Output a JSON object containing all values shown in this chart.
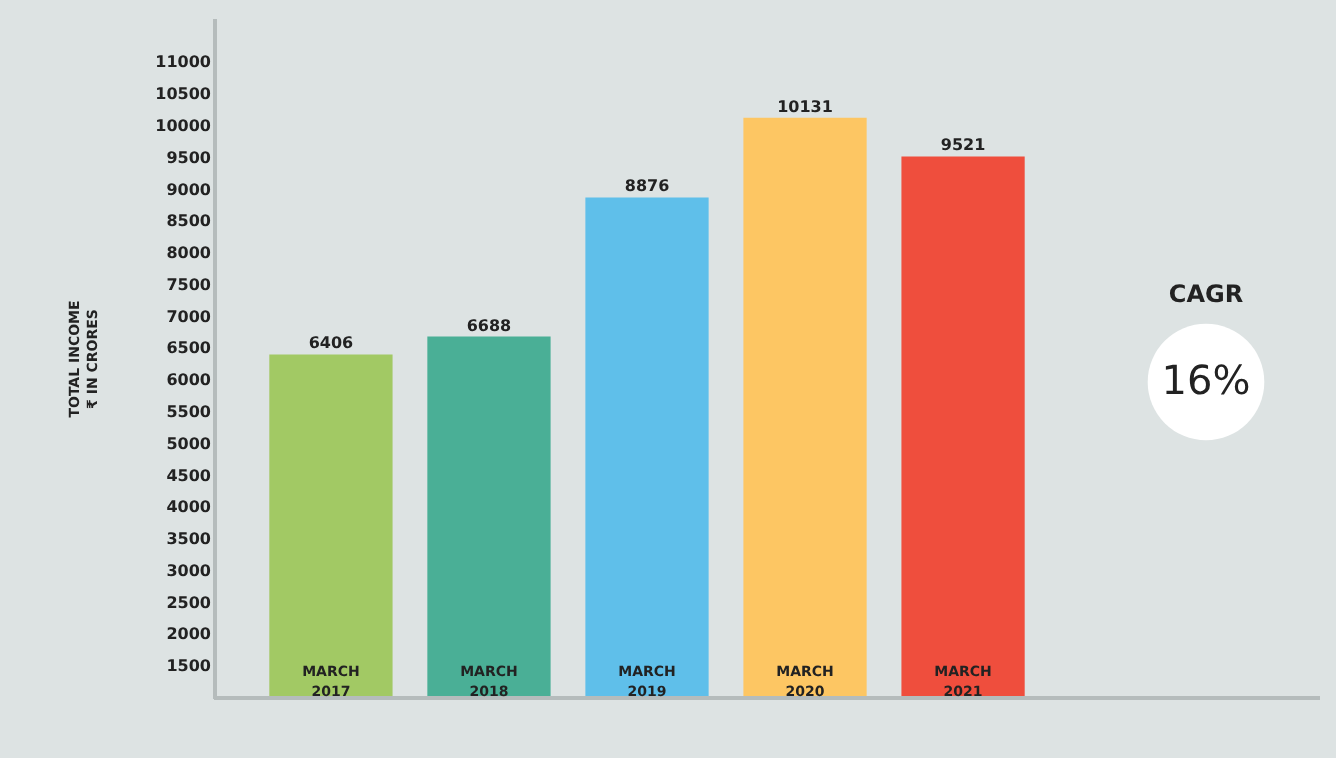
{
  "chart_data": {
    "type": "bar",
    "ylabel": "TOTAL INCOME\n₹ IN CRORES",
    "categories": [
      "MARCH 2017",
      "MARCH 2018",
      "MARCH 2019",
      "MARCH 2020",
      "MARCH 2021"
    ],
    "values": [
      6406,
      6688,
      8876,
      10131,
      9521
    ],
    "colors": [
      "#a2c964",
      "#4aaf96",
      "#5fbfea",
      "#fdc663",
      "#ef4e3d"
    ],
    "ylim": [
      1000,
      11700
    ],
    "yticks": [
      1500,
      2000,
      2500,
      3000,
      3500,
      4000,
      4500,
      5000,
      5500,
      6000,
      6500,
      7000,
      7500,
      8000,
      8500,
      9000,
      9500,
      10000,
      10500,
      11000
    ],
    "data_labels": true,
    "grid": false,
    "annotations": [
      "CAGR",
      "16%"
    ]
  }
}
